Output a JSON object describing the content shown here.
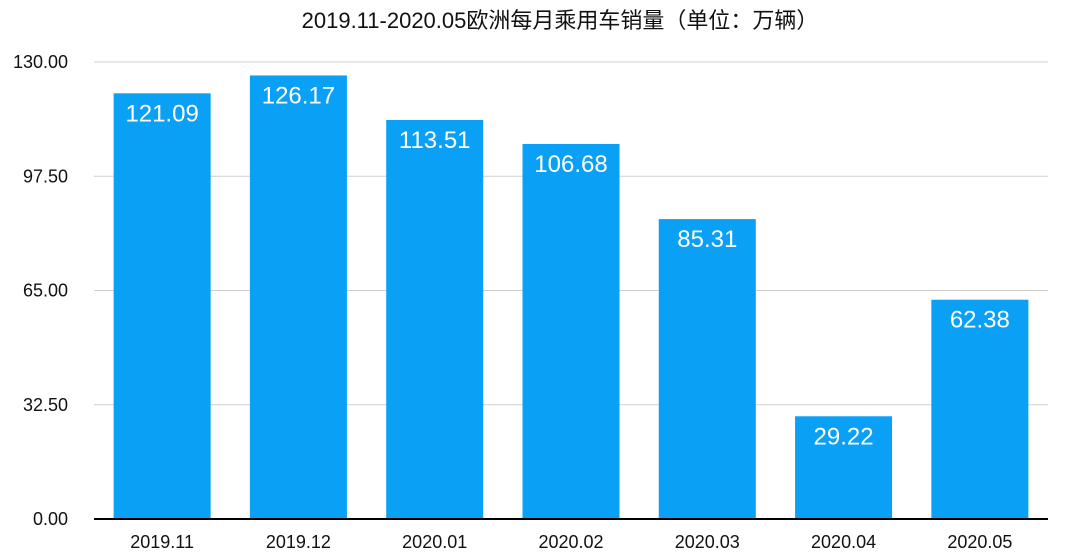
{
  "chart_data": {
    "type": "bar",
    "title": "2019.11-2020.05欧洲每月乘用车销量（单位：万辆）",
    "categories": [
      "2019.11",
      "2019.12",
      "2020.01",
      "2020.02",
      "2020.03",
      "2020.04",
      "2020.05"
    ],
    "values": [
      121.09,
      126.17,
      113.51,
      106.68,
      85.31,
      29.22,
      62.38
    ],
    "value_labels": [
      "121.09",
      "126.17",
      "113.51",
      "106.68",
      "85.31",
      "29.22",
      "62.38"
    ],
    "ylim": [
      0,
      130
    ],
    "yticks": [
      "0.00",
      "32.50",
      "65.00",
      "97.50",
      "130.00"
    ],
    "ytick_values": [
      0,
      32.5,
      65,
      97.5,
      130
    ],
    "grid": true,
    "bar_color": "#0aa0f6"
  }
}
